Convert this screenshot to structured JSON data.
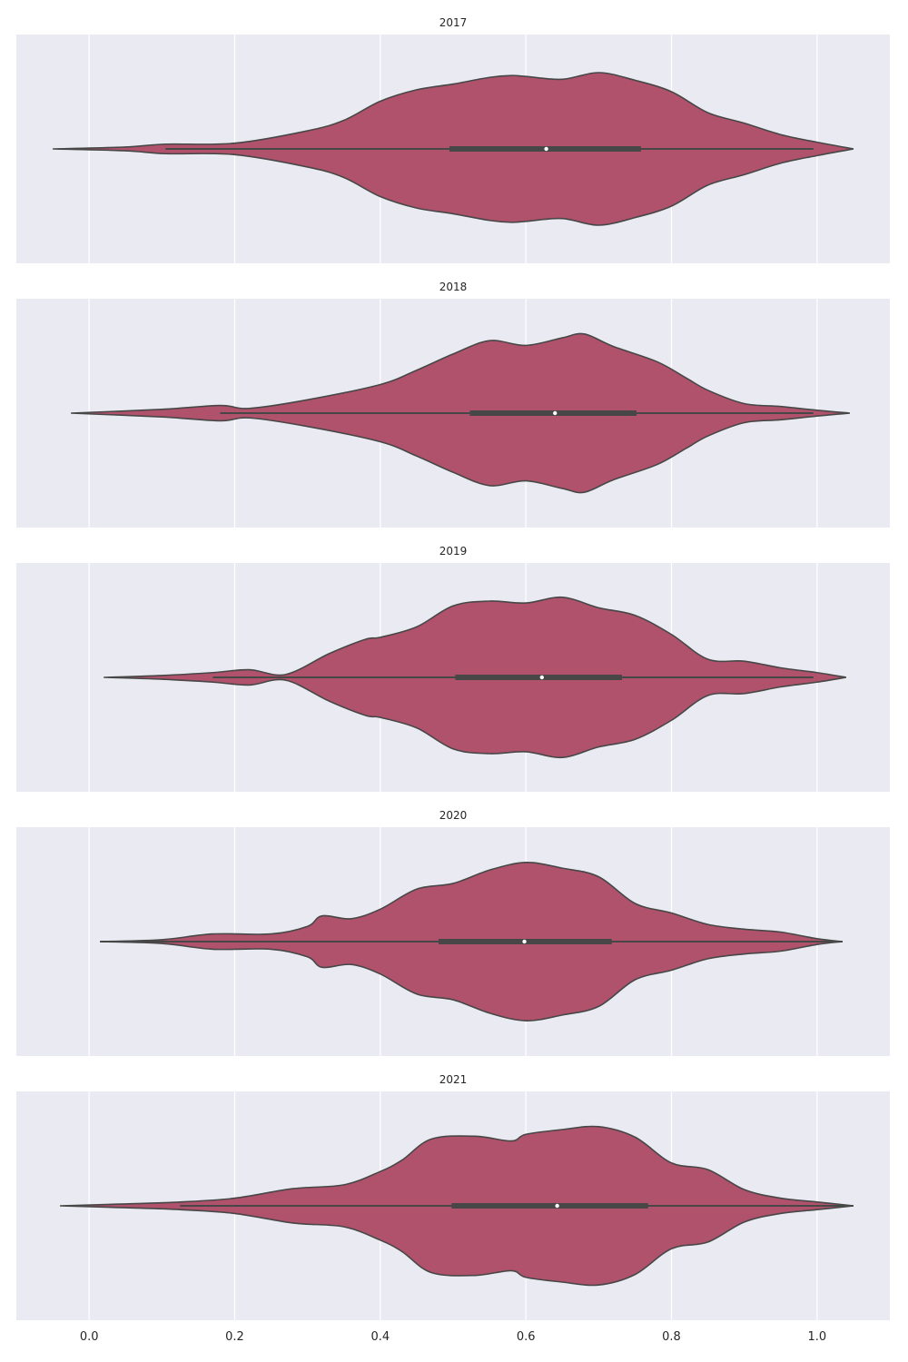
{
  "chart_data": {
    "type": "violin",
    "orientation": "horizontal",
    "xlim": [
      -0.1,
      1.1
    ],
    "x_ticks": [
      0.0,
      0.2,
      0.4,
      0.6,
      0.8,
      1.0
    ],
    "x_tick_labels": [
      "0.0",
      "0.2",
      "0.4",
      "0.6",
      "0.8",
      "1.0"
    ],
    "xlabel": "",
    "ylabel": "",
    "grid": true,
    "color": "#b0526c",
    "edge_color": "#474747",
    "background": "#eaeaf2",
    "panels": [
      {
        "title": "2017",
        "min": -0.05,
        "max": 1.05,
        "whisker_low": 0.105,
        "q1": 0.495,
        "median": 0.628,
        "q3": 0.758,
        "whisker_high": 0.995,
        "density_x": [
          -0.05,
          0.05,
          0.105,
          0.2,
          0.3,
          0.35,
          0.4,
          0.45,
          0.5,
          0.55,
          0.58,
          0.6,
          0.65,
          0.7,
          0.75,
          0.8,
          0.85,
          0.9,
          0.95,
          1.0,
          1.05
        ],
        "density_w": [
          0.0,
          0.02,
          0.05,
          0.06,
          0.19,
          0.3,
          0.5,
          0.62,
          0.68,
          0.75,
          0.77,
          0.76,
          0.73,
          0.8,
          0.72,
          0.6,
          0.38,
          0.27,
          0.15,
          0.07,
          0.0
        ]
      },
      {
        "title": "2018",
        "min": -0.025,
        "max": 1.045,
        "whisker_low": 0.18,
        "q1": 0.523,
        "median": 0.64,
        "q3": 0.752,
        "whisker_high": 0.995,
        "density_x": [
          -0.025,
          0.1,
          0.18,
          0.22,
          0.3,
          0.4,
          0.45,
          0.5,
          0.55,
          0.6,
          0.65,
          0.68,
          0.72,
          0.78,
          0.82,
          0.85,
          0.9,
          0.95,
          1.0,
          1.045
        ],
        "density_w": [
          0.0,
          0.04,
          0.08,
          0.05,
          0.14,
          0.3,
          0.45,
          0.62,
          0.76,
          0.71,
          0.79,
          0.83,
          0.7,
          0.54,
          0.37,
          0.24,
          0.1,
          0.07,
          0.03,
          0.0
        ]
      },
      {
        "title": "2019",
        "min": 0.02,
        "max": 1.04,
        "whisker_low": 0.17,
        "q1": 0.503,
        "median": 0.622,
        "q3": 0.732,
        "whisker_high": 0.995,
        "density_x": [
          0.02,
          0.1,
          0.17,
          0.22,
          0.27,
          0.33,
          0.38,
          0.4,
          0.45,
          0.5,
          0.55,
          0.6,
          0.65,
          0.7,
          0.75,
          0.8,
          0.85,
          0.9,
          0.95,
          1.0,
          1.04
        ],
        "density_w": [
          0.0,
          0.02,
          0.05,
          0.08,
          0.03,
          0.25,
          0.4,
          0.42,
          0.53,
          0.75,
          0.8,
          0.78,
          0.84,
          0.73,
          0.65,
          0.45,
          0.19,
          0.17,
          0.1,
          0.05,
          0.0
        ]
      },
      {
        "title": "2020",
        "min": 0.015,
        "max": 1.035,
        "whisker_low": 0.015,
        "q1": 0.48,
        "median": 0.598,
        "q3": 0.718,
        "whisker_high": 1.035,
        "density_x": [
          0.015,
          0.1,
          0.17,
          0.25,
          0.3,
          0.32,
          0.36,
          0.4,
          0.45,
          0.5,
          0.55,
          0.6,
          0.65,
          0.7,
          0.75,
          0.8,
          0.85,
          0.9,
          0.95,
          1.0,
          1.035
        ],
        "density_w": [
          0.0,
          0.02,
          0.08,
          0.08,
          0.16,
          0.27,
          0.24,
          0.34,
          0.55,
          0.61,
          0.75,
          0.83,
          0.77,
          0.68,
          0.4,
          0.3,
          0.18,
          0.13,
          0.1,
          0.03,
          0.0
        ]
      },
      {
        "title": "2021",
        "min": -0.04,
        "max": 1.05,
        "whisker_low": 0.125,
        "q1": 0.498,
        "median": 0.643,
        "q3": 0.768,
        "whisker_high": 1.05,
        "density_x": [
          -0.04,
          0.05,
          0.125,
          0.2,
          0.28,
          0.35,
          0.4,
          0.43,
          0.47,
          0.53,
          0.58,
          0.6,
          0.65,
          0.7,
          0.75,
          0.8,
          0.85,
          0.9,
          0.95,
          1.0,
          1.05
        ],
        "density_w": [
          0.0,
          0.02,
          0.04,
          0.08,
          0.18,
          0.22,
          0.36,
          0.48,
          0.7,
          0.73,
          0.68,
          0.75,
          0.8,
          0.83,
          0.72,
          0.45,
          0.38,
          0.17,
          0.08,
          0.04,
          0.0
        ]
      }
    ]
  }
}
